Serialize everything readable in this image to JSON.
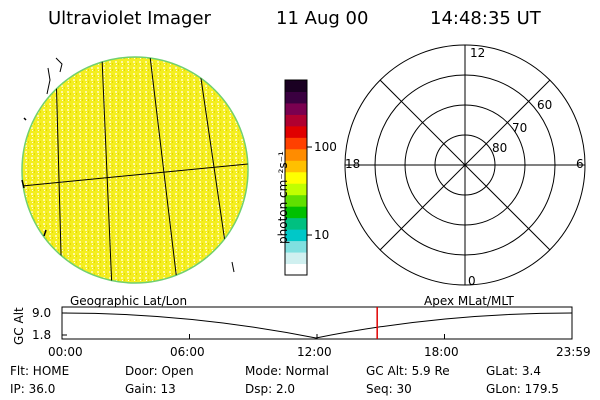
{
  "header": {
    "instrument": "Ultraviolet Imager",
    "date": "11 Aug 00",
    "time": "14:48:35 UT"
  },
  "colorbar": {
    "unit_label": "photon cm⁻²s⁻¹",
    "ticks": [
      "100",
      "10"
    ],
    "colors": [
      "#1a0022",
      "#3a0040",
      "#7a0050",
      "#b00030",
      "#e00000",
      "#ff4000",
      "#ff8c00",
      "#ffc000",
      "#ffff00",
      "#c0ff00",
      "#60e000",
      "#00c000",
      "#00c080",
      "#00c8c8",
      "#80e0e0",
      "#d0f0f0",
      "#ffffff"
    ]
  },
  "left_panel": {
    "caption": "Geographic Lat/Lon",
    "disk_color": "#f4ee20",
    "limb_color": "#70d070"
  },
  "right_panel": {
    "caption": "Apex MLat/MLT",
    "mlt_labels": {
      "top": "12",
      "left": "18",
      "right": "6",
      "bottom": "0"
    },
    "lat_labels": [
      "60",
      "70",
      "80"
    ]
  },
  "altitude_plot": {
    "ylabel": "GC Alt",
    "y_ticks": [
      "9.0",
      "1.8"
    ],
    "x_ticks": [
      "00:00",
      "06:00",
      "12:00",
      "18:00",
      "23:59"
    ],
    "current_time_fraction": 0.618,
    "marker_color": "#e00000"
  },
  "info": {
    "flt": "Flt: HOME",
    "ip": "IP: 36.0",
    "door": "Door: Open",
    "gain": "Gain: 13",
    "mode": "Mode: Normal",
    "dsp": "Dsp:    2.0",
    "gcalt": "GC Alt: 5.9 Re",
    "seq": "Seq: 30",
    "glat": "GLat:    3.4",
    "glon": "GLon: 179.5"
  }
}
